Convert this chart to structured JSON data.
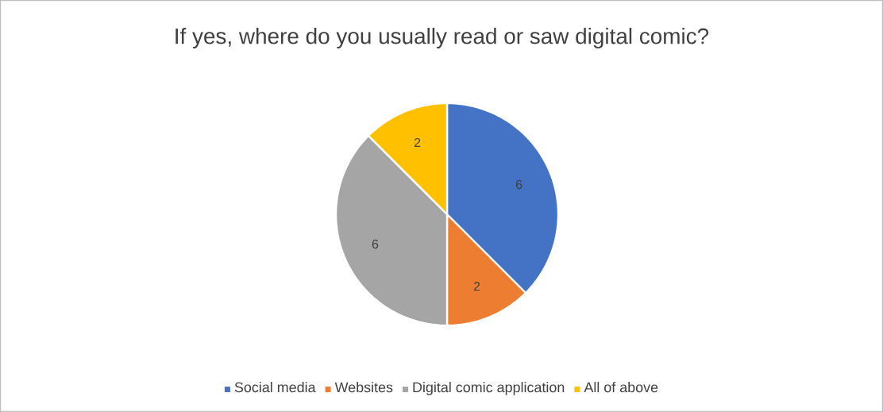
{
  "chart_data": {
    "type": "pie",
    "title": "If yes, where do you usually read or saw digital comic?",
    "categories": [
      "Social media",
      "Websites",
      "Digital comic application",
      "All of above"
    ],
    "values": [
      6,
      2,
      6,
      2
    ],
    "colors": [
      "#4472c4",
      "#ed7d31",
      "#a5a5a5",
      "#ffc000"
    ],
    "data_labels": true,
    "legend": "bottom"
  }
}
